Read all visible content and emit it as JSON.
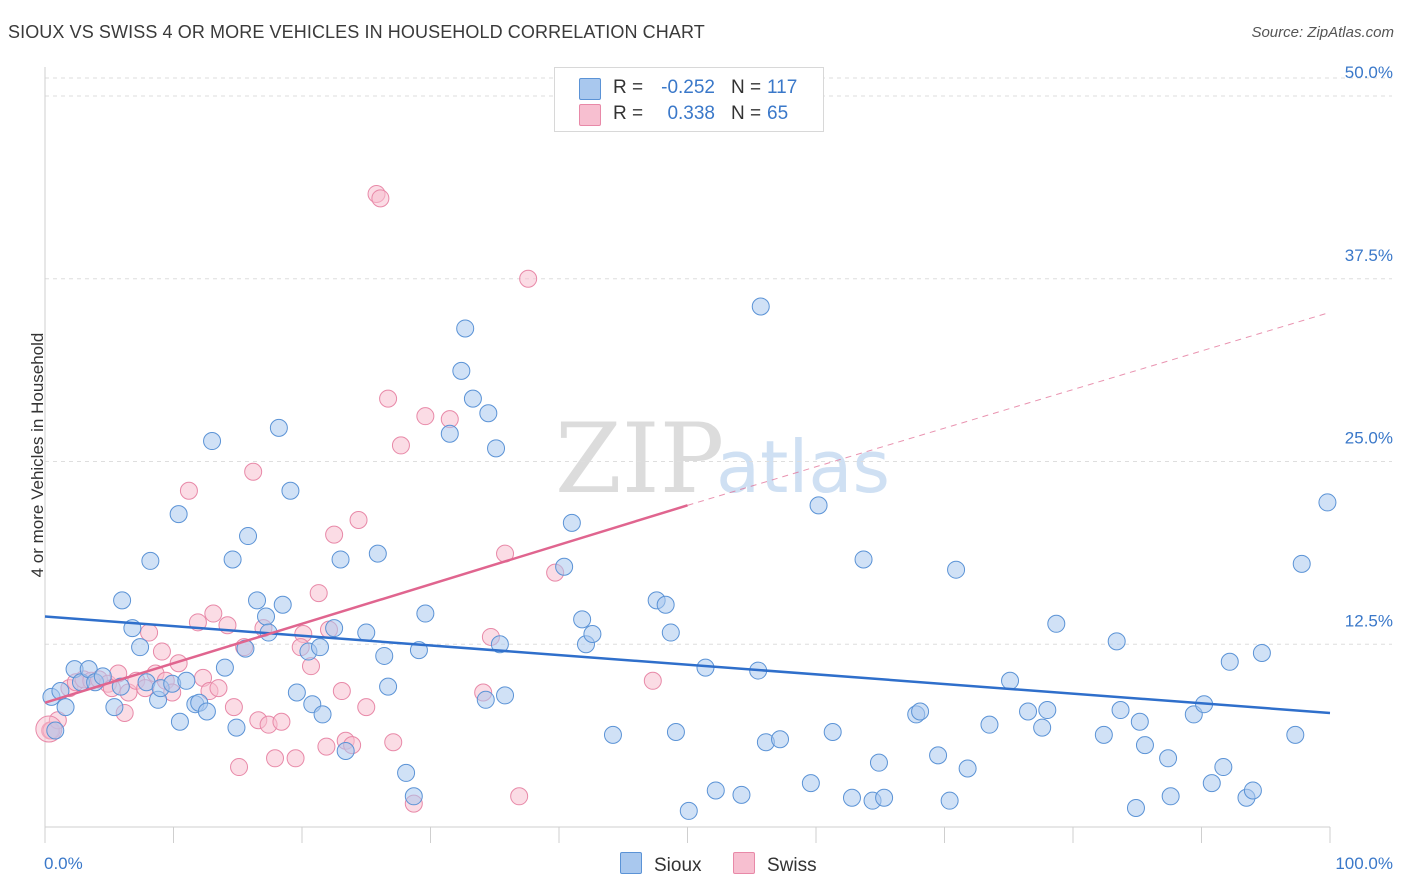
{
  "header": {
    "title": "SIOUX VS SWISS 4 OR MORE VEHICLES IN HOUSEHOLD CORRELATION CHART",
    "source": "Source: ZipAtlas.com"
  },
  "legend": {
    "rows": [
      {
        "r_label": "R =",
        "r_value": "-0.252",
        "n_label": "N =",
        "n_value": "117"
      },
      {
        "r_label": "R =",
        "r_value": "0.338",
        "n_label": "N =",
        "n_value": "65"
      }
    ]
  },
  "bottom_legend": {
    "sioux": "Sioux",
    "swiss": "Swiss"
  },
  "watermark": {
    "zip": "ZIP",
    "atlas": "atlas"
  },
  "colors": {
    "sioux_fill": "#a9c8ee",
    "sioux_stroke": "#5b93d6",
    "sioux_line": "#2f6fcb",
    "swiss_fill": "#f7bfd0",
    "swiss_stroke": "#e889a8",
    "swiss_line": "#e0658f",
    "axis_text": "#3a78c9"
  },
  "chart_data": {
    "type": "scatter",
    "title": "SIOUX VS SWISS 4 OR MORE VEHICLES IN HOUSEHOLD CORRELATION CHART",
    "xlabel": "",
    "ylabel": "4 or more Vehicles in Household",
    "xlim": [
      0,
      100
    ],
    "ylim": [
      0,
      50
    ],
    "x_tick_labels": [
      "0.0%",
      "100.0%"
    ],
    "y_ticks": [
      12.5,
      25.0,
      37.5,
      50.0
    ],
    "y_tick_labels": [
      "12.5%",
      "25.0%",
      "37.5%",
      "50.0%"
    ],
    "grid": true,
    "legend_position": "top-center",
    "series": [
      {
        "name": "Sioux",
        "R": -0.252,
        "N": 117,
        "trend": {
          "x": [
            0,
            100
          ],
          "y": [
            14.4,
            7.8
          ]
        },
        "points": [
          [
            0.5,
            8.9
          ],
          [
            0.8,
            6.6
          ],
          [
            1.2,
            9.3
          ],
          [
            1.6,
            8.2
          ],
          [
            2.3,
            10.8
          ],
          [
            2.8,
            9.9
          ],
          [
            3.4,
            10.8
          ],
          [
            3.9,
            9.9
          ],
          [
            4.5,
            10.3
          ],
          [
            5.4,
            8.2
          ],
          [
            5.9,
            9.6
          ],
          [
            6.0,
            15.5
          ],
          [
            6.8,
            13.6
          ],
          [
            7.4,
            12.3
          ],
          [
            7.9,
            9.9
          ],
          [
            8.2,
            18.2
          ],
          [
            8.8,
            8.7
          ],
          [
            9.0,
            9.5
          ],
          [
            9.9,
            9.8
          ],
          [
            10.5,
            7.2
          ],
          [
            10.4,
            21.4
          ],
          [
            11.0,
            10.0
          ],
          [
            11.7,
            8.4
          ],
          [
            12.0,
            8.5
          ],
          [
            12.6,
            7.9
          ],
          [
            13.0,
            26.4
          ],
          [
            14.0,
            10.9
          ],
          [
            14.6,
            18.3
          ],
          [
            14.9,
            6.8
          ],
          [
            15.6,
            12.2
          ],
          [
            15.8,
            19.9
          ],
          [
            16.5,
            15.5
          ],
          [
            17.2,
            14.4
          ],
          [
            17.4,
            13.3
          ],
          [
            18.2,
            27.3
          ],
          [
            18.5,
            15.2
          ],
          [
            19.1,
            23.0
          ],
          [
            19.6,
            9.2
          ],
          [
            20.5,
            12.0
          ],
          [
            20.8,
            8.4
          ],
          [
            21.4,
            12.3
          ],
          [
            21.6,
            7.7
          ],
          [
            22.5,
            13.6
          ],
          [
            23.0,
            18.3
          ],
          [
            23.4,
            5.2
          ],
          [
            25.0,
            13.3
          ],
          [
            25.9,
            18.7
          ],
          [
            26.4,
            11.7
          ],
          [
            26.7,
            9.6
          ],
          [
            28.1,
            3.7
          ],
          [
            28.7,
            2.1
          ],
          [
            29.1,
            12.1
          ],
          [
            29.6,
            14.6
          ],
          [
            31.5,
            26.9
          ],
          [
            32.4,
            31.2
          ],
          [
            32.7,
            34.1
          ],
          [
            33.3,
            29.3
          ],
          [
            34.3,
            8.7
          ],
          [
            34.5,
            28.3
          ],
          [
            35.1,
            25.9
          ],
          [
            35.4,
            12.5
          ],
          [
            35.8,
            9.0
          ],
          [
            40.4,
            17.8
          ],
          [
            41.0,
            20.8
          ],
          [
            41.8,
            14.2
          ],
          [
            42.1,
            12.5
          ],
          [
            42.6,
            13.2
          ],
          [
            44.2,
            6.3
          ],
          [
            47.6,
            15.5
          ],
          [
            48.3,
            15.2
          ],
          [
            48.7,
            13.3
          ],
          [
            49.1,
            6.5
          ],
          [
            50.1,
            1.1
          ],
          [
            51.4,
            10.9
          ],
          [
            52.2,
            2.5
          ],
          [
            54.2,
            2.2
          ],
          [
            55.5,
            10.7
          ],
          [
            55.7,
            35.6
          ],
          [
            56.1,
            5.8
          ],
          [
            57.2,
            6.0
          ],
          [
            59.6,
            3.0
          ],
          [
            60.2,
            22.0
          ],
          [
            61.3,
            6.5
          ],
          [
            62.8,
            2.0
          ],
          [
            63.7,
            18.3
          ],
          [
            64.4,
            1.8
          ],
          [
            64.9,
            4.4
          ],
          [
            65.3,
            2.0
          ],
          [
            67.8,
            7.7
          ],
          [
            68.1,
            7.9
          ],
          [
            69.5,
            4.9
          ],
          [
            70.4,
            1.8
          ],
          [
            70.9,
            17.6
          ],
          [
            71.8,
            4.0
          ],
          [
            73.5,
            7.0
          ],
          [
            75.1,
            10.0
          ],
          [
            76.5,
            7.9
          ],
          [
            77.6,
            6.8
          ],
          [
            78.0,
            8.0
          ],
          [
            78.7,
            13.9
          ],
          [
            82.4,
            6.3
          ],
          [
            83.4,
            12.7
          ],
          [
            83.7,
            8.0
          ],
          [
            84.9,
            1.3
          ],
          [
            85.2,
            7.2
          ],
          [
            85.6,
            5.6
          ],
          [
            87.4,
            4.7
          ],
          [
            87.6,
            2.1
          ],
          [
            89.4,
            7.7
          ],
          [
            90.2,
            8.4
          ],
          [
            90.8,
            3.0
          ],
          [
            91.7,
            4.1
          ],
          [
            92.2,
            11.3
          ],
          [
            93.5,
            2.0
          ],
          [
            94.0,
            2.5
          ],
          [
            94.7,
            11.9
          ],
          [
            97.3,
            6.3
          ],
          [
            97.8,
            18.0
          ],
          [
            99.8,
            22.2
          ]
        ]
      },
      {
        "name": "Swiss",
        "R": 0.338,
        "N": 65,
        "trend": {
          "x": [
            0,
            50
          ],
          "y": [
            8.5,
            22.0
          ]
        },
        "trend_extended": {
          "x": [
            50,
            100
          ],
          "y": [
            22.0,
            35.2
          ]
        },
        "points": [
          [
            0.4,
            6.6
          ],
          [
            0.5,
            6.6
          ],
          [
            1.0,
            7.3
          ],
          [
            1.9,
            9.5
          ],
          [
            2.4,
            9.9
          ],
          [
            3.0,
            10.1
          ],
          [
            3.6,
            10.0
          ],
          [
            4.2,
            10.1
          ],
          [
            4.9,
            9.8
          ],
          [
            5.2,
            9.5
          ],
          [
            5.7,
            10.5
          ],
          [
            6.2,
            7.8
          ],
          [
            6.5,
            9.2
          ],
          [
            7.1,
            10.0
          ],
          [
            7.8,
            9.5
          ],
          [
            8.1,
            13.3
          ],
          [
            8.6,
            10.5
          ],
          [
            9.4,
            10.0
          ],
          [
            9.9,
            9.2
          ],
          [
            10.4,
            11.2
          ],
          [
            11.2,
            23.0
          ],
          [
            11.9,
            14.0
          ],
          [
            12.3,
            10.2
          ],
          [
            12.8,
            9.3
          ],
          [
            13.1,
            14.6
          ],
          [
            13.5,
            9.5
          ],
          [
            14.2,
            13.8
          ],
          [
            14.7,
            8.2
          ],
          [
            15.5,
            12.3
          ],
          [
            16.2,
            24.3
          ],
          [
            16.6,
            7.3
          ],
          [
            17.0,
            13.6
          ],
          [
            17.4,
            7.0
          ],
          [
            17.9,
            4.7
          ],
          [
            18.4,
            7.2
          ],
          [
            19.5,
            4.7
          ],
          [
            20.1,
            13.2
          ],
          [
            20.7,
            11.0
          ],
          [
            21.3,
            16.0
          ],
          [
            21.9,
            5.5
          ],
          [
            22.1,
            13.5
          ],
          [
            22.5,
            20.0
          ],
          [
            23.1,
            9.3
          ],
          [
            23.4,
            5.9
          ],
          [
            23.9,
            5.6
          ],
          [
            24.4,
            21.0
          ],
          [
            25.0,
            8.2
          ],
          [
            25.8,
            43.3
          ],
          [
            26.1,
            43.0
          ],
          [
            26.7,
            29.3
          ],
          [
            27.1,
            5.8
          ],
          [
            27.7,
            26.1
          ],
          [
            28.7,
            1.6
          ],
          [
            29.6,
            28.1
          ],
          [
            31.5,
            27.9
          ],
          [
            34.1,
            9.2
          ],
          [
            34.7,
            13.0
          ],
          [
            35.8,
            18.7
          ],
          [
            36.9,
            2.1
          ],
          [
            37.6,
            37.5
          ],
          [
            39.7,
            17.4
          ],
          [
            47.3,
            10.0
          ],
          [
            19.9,
            12.3
          ],
          [
            15.1,
            4.1
          ],
          [
            9.1,
            12.0
          ]
        ]
      }
    ]
  }
}
